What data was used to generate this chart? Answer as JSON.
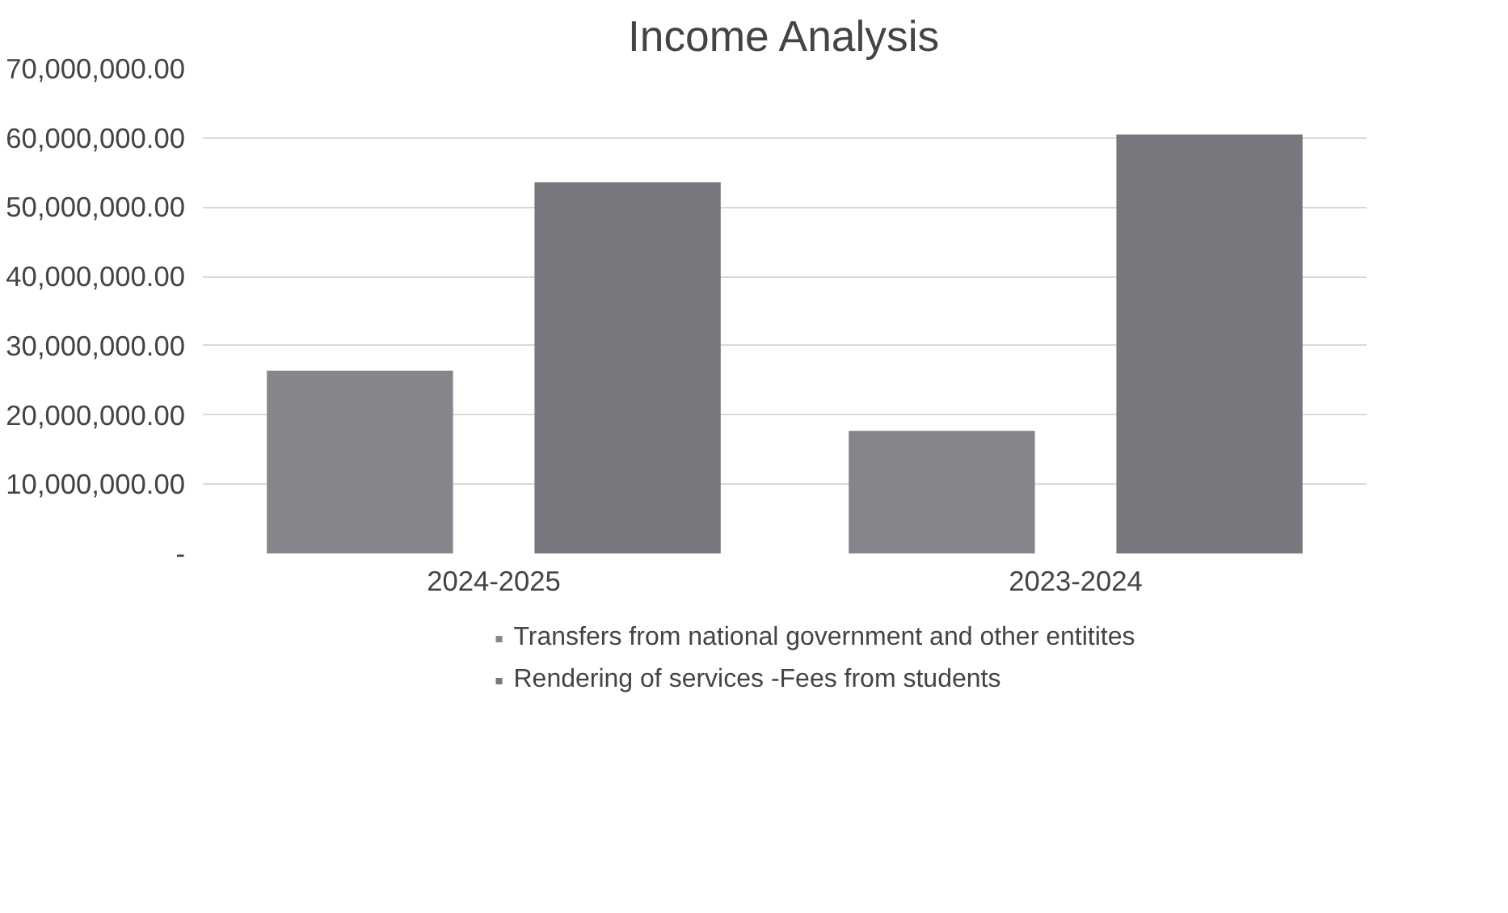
{
  "chart_data": {
    "type": "bar",
    "title": "Income Analysis",
    "categories": [
      "2024-2025",
      "2023-2024"
    ],
    "series": [
      {
        "name": "Transfers from national government and other entitites",
        "color": "#86858c",
        "values": [
          26400000,
          17700000
        ]
      },
      {
        "name": "Rendering of services -Fees from students",
        "color": "#78777e",
        "values": [
          53600000,
          60500000
        ]
      }
    ],
    "ylim": [
      0,
      70000000
    ],
    "yticks": [
      {
        "value": 0,
        "label": "-"
      },
      {
        "value": 10000000,
        "label": "10,000,000.00"
      },
      {
        "value": 20000000,
        "label": "20,000,000.00"
      },
      {
        "value": 30000000,
        "label": "30,000,000.00"
      },
      {
        "value": 40000000,
        "label": "40,000,000.00"
      },
      {
        "value": 50000000,
        "label": "50,000,000.00"
      },
      {
        "value": 60000000,
        "label": "60,000,000.00"
      },
      {
        "value": 70000000,
        "label": "70,000,000.00"
      }
    ],
    "grid": "y",
    "legend": "bottom"
  }
}
